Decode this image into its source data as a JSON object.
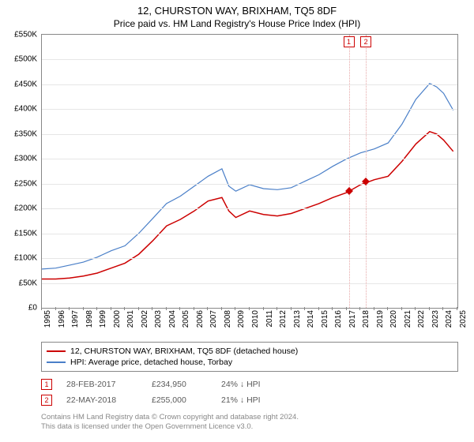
{
  "title": "12, CHURSTON WAY, BRIXHAM, TQ5 8DF",
  "subtitle": "Price paid vs. HM Land Registry's House Price Index (HPI)",
  "chart": {
    "type": "line",
    "background_color": "#ffffff",
    "grid_color": "#e6e6e6",
    "border_color": "#888888",
    "ylim": [
      0,
      550000
    ],
    "ytick_step": 50000,
    "ytick_prefix": "£",
    "ytick_suffix": "K",
    "ylabel_fontsize": 10,
    "xlim": [
      1995,
      2025
    ],
    "xticks": [
      1995,
      1996,
      1997,
      1998,
      1999,
      2000,
      2001,
      2002,
      2003,
      2004,
      2005,
      2006,
      2007,
      2008,
      2009,
      2010,
      2011,
      2012,
      2013,
      2014,
      2015,
      2016,
      2017,
      2018,
      2019,
      2020,
      2021,
      2022,
      2023,
      2024,
      2025
    ],
    "xlabel_fontsize": 10,
    "series": [
      {
        "name": "hpi",
        "color": "#4a7fc8",
        "width": 1.2,
        "data": [
          [
            1995,
            78000
          ],
          [
            1996,
            80000
          ],
          [
            1997,
            86000
          ],
          [
            1998,
            92000
          ],
          [
            1999,
            102000
          ],
          [
            2000,
            115000
          ],
          [
            2001,
            125000
          ],
          [
            2002,
            150000
          ],
          [
            2003,
            180000
          ],
          [
            2004,
            210000
          ],
          [
            2005,
            225000
          ],
          [
            2006,
            245000
          ],
          [
            2007,
            265000
          ],
          [
            2008,
            280000
          ],
          [
            2008.5,
            245000
          ],
          [
            2009,
            235000
          ],
          [
            2010,
            248000
          ],
          [
            2011,
            240000
          ],
          [
            2012,
            238000
          ],
          [
            2013,
            242000
          ],
          [
            2014,
            255000
          ],
          [
            2015,
            268000
          ],
          [
            2016,
            285000
          ],
          [
            2017,
            300000
          ],
          [
            2018,
            312000
          ],
          [
            2019,
            320000
          ],
          [
            2020,
            332000
          ],
          [
            2021,
            370000
          ],
          [
            2022,
            420000
          ],
          [
            2023,
            452000
          ],
          [
            2023.5,
            445000
          ],
          [
            2024,
            432000
          ],
          [
            2024.7,
            398000
          ]
        ]
      },
      {
        "name": "property",
        "color": "#cc0000",
        "width": 1.5,
        "data": [
          [
            1995,
            58000
          ],
          [
            1996,
            58000
          ],
          [
            1997,
            60000
          ],
          [
            1998,
            64000
          ],
          [
            1999,
            70000
          ],
          [
            2000,
            80000
          ],
          [
            2001,
            90000
          ],
          [
            2002,
            108000
          ],
          [
            2003,
            135000
          ],
          [
            2004,
            165000
          ],
          [
            2005,
            178000
          ],
          [
            2006,
            195000
          ],
          [
            2007,
            215000
          ],
          [
            2008,
            222000
          ],
          [
            2008.5,
            195000
          ],
          [
            2009,
            182000
          ],
          [
            2010,
            195000
          ],
          [
            2011,
            188000
          ],
          [
            2012,
            185000
          ],
          [
            2013,
            190000
          ],
          [
            2014,
            200000
          ],
          [
            2015,
            210000
          ],
          [
            2016,
            222000
          ],
          [
            2017,
            232000
          ],
          [
            2018,
            248000
          ],
          [
            2019,
            258000
          ],
          [
            2020,
            265000
          ],
          [
            2021,
            295000
          ],
          [
            2022,
            330000
          ],
          [
            2023,
            355000
          ],
          [
            2023.5,
            350000
          ],
          [
            2024,
            338000
          ],
          [
            2024.7,
            315000
          ]
        ]
      }
    ],
    "sale_markers": [
      {
        "n": "1",
        "x": 2017.16,
        "price": 234950,
        "vline_color": "#e6a8a8"
      },
      {
        "n": "2",
        "x": 2018.39,
        "price": 255000,
        "vline_color": "#e6a8a8"
      }
    ]
  },
  "legend": {
    "items": [
      {
        "color": "#cc0000",
        "label": "12, CHURSTON WAY, BRIXHAM, TQ5 8DF (detached house)"
      },
      {
        "color": "#4a7fc8",
        "label": "HPI: Average price, detached house, Torbay"
      }
    ]
  },
  "sales": [
    {
      "n": "1",
      "date": "28-FEB-2017",
      "price": "£234,950",
      "delta": "24% ↓ HPI"
    },
    {
      "n": "2",
      "date": "22-MAY-2018",
      "price": "£255,000",
      "delta": "21% ↓ HPI"
    }
  ],
  "footnote_line1": "Contains HM Land Registry data © Crown copyright and database right 2024.",
  "footnote_line2": "This data is licensed under the Open Government Licence v3.0."
}
